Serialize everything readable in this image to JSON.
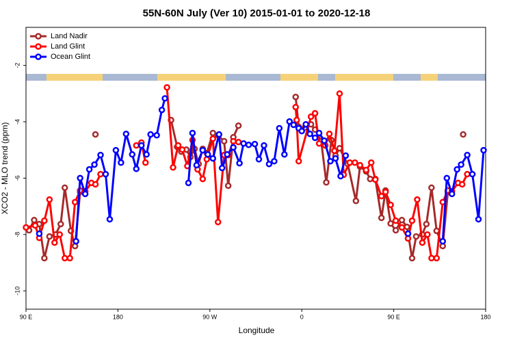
{
  "chart_data": {
    "type": "line",
    "title": "55N-60N July (Ver 10)   2015-01-01 to 2020-12-18",
    "xlabel": "Longitude",
    "ylabel": "XCO2 - MLO trend (ppm)",
    "xlim": [
      90,
      540
    ],
    "ylim": [
      -10.65,
      -0.65
    ],
    "xticks": [
      {
        "value": 90,
        "label": "90 E"
      },
      180,
      {
        "value": 270,
        "label": "90 W"
      },
      {
        "value": 360,
        "label": "0"
      },
      {
        "value": 450,
        "label": "90 E"
      },
      {
        "value": 540,
        "label": "180"
      }
    ],
    "yticks": [
      -2,
      -4,
      -6,
      -8,
      -10
    ],
    "legend": "upper left",
    "series": [
      {
        "name": "Land Nadir",
        "color": "#a52a2a",
        "x": [
          93,
          98,
          103,
          108,
          113,
          119,
          124,
          128,
          134,
          138,
          143,
          150,
          158,
          200,
          232,
          238,
          242,
          247,
          251,
          255,
          259,
          263,
          267,
          273,
          278,
          284,
          288,
          293,
          298,
          325,
          354,
          357,
          363,
          369,
          373,
          379,
          384,
          389,
          393,
          397,
          405,
          413,
          417,
          423,
          427,
          432,
          438,
          442,
          447,
          452,
          458,
          463,
          468,
          472,
          478,
          482,
          487,
          492,
          498,
          503,
          510,
          518
        ],
        "values": [
          -7.85,
          -7.49,
          -7.63,
          -8.84,
          -8.07,
          -8.0,
          -7.63,
          -6.34,
          -7.87,
          -8.41,
          -6.49,
          null,
          -4.45,
          null,
          -3.94,
          -4.89,
          -5.06,
          -4.99,
          -5.25,
          -4.96,
          -5.5,
          -4.96,
          -5.11,
          -4.4,
          -4.48,
          -4.69,
          -6.27,
          -4.55,
          -4.14,
          null,
          -3.12,
          -4.18,
          -4.21,
          -4.09,
          -4.28,
          -4.69,
          -6.15,
          -4.65,
          -5.2,
          -4.94,
          -5.5,
          -6.81,
          -5.59,
          -5.76,
          -6.03,
          -6.03,
          -7.41,
          -6.44,
          -7.61,
          -7.85,
          -7.49,
          -7.73,
          -8.84,
          -8.07,
          -8.0,
          -7.63,
          -6.34,
          -7.87,
          -8.41,
          -6.49,
          null,
          -4.45
        ]
      },
      {
        "name": "Land Glint",
        "color": "#ff0000",
        "x": [
          90,
          99,
          103,
          108,
          113,
          118,
          123,
          128,
          133,
          138,
          143,
          148,
          154,
          158,
          163,
          175,
          198,
          203,
          207,
          218,
          228,
          234,
          239,
          243,
          248,
          253,
          258,
          263,
          267,
          273,
          278,
          284,
          288,
          293,
          298,
          325,
          354,
          355,
          357,
          369,
          373,
          377,
          383,
          387,
          392,
          397,
          401,
          407,
          412,
          417,
          423,
          428,
          432,
          438,
          442,
          447,
          452,
          458,
          464,
          468,
          473,
          478,
          483,
          487,
          492,
          498,
          503,
          507,
          513,
          517,
          522
        ],
        "values": [
          -7.75,
          -7.68,
          -8.12,
          -7.51,
          -6.76,
          -8.29,
          -8.0,
          -8.84,
          -8.84,
          -6.85,
          -6.44,
          -6.47,
          -6.17,
          -6.22,
          -5.86,
          null,
          -4.84,
          -4.74,
          -5.45,
          null,
          -2.78,
          -5.62,
          -4.84,
          -4.99,
          -5.57,
          -4.65,
          -5.69,
          -6.03,
          -5.33,
          -4.6,
          -7.56,
          -5.18,
          -5.18,
          -4.69,
          -4.72,
          null,
          -3.48,
          -3.94,
          -5.4,
          -3.82,
          -3.7,
          -4.77,
          -4.84,
          -4.43,
          -5.03,
          -3.0,
          -5.88,
          -5.45,
          -5.45,
          -5.54,
          -5.71,
          -5.45,
          -6.05,
          -6.64,
          -6.49,
          -6.95,
          -7.51,
          -7.75,
          -8.14,
          -7.51,
          -6.76,
          -8.29,
          -8.0,
          -8.84,
          -8.84,
          -6.85,
          -6.44,
          -6.47,
          -6.17,
          -6.22,
          -5.86
        ]
      },
      {
        "name": "Ocean Glint",
        "color": "#0000ff",
        "x": [
          103,
          120,
          139,
          143,
          148,
          152,
          157,
          163,
          168,
          172,
          178,
          183,
          188,
          194,
          198,
          203,
          208,
          212,
          218,
          223,
          226,
          238,
          249,
          253,
          257,
          263,
          268,
          273,
          279,
          282,
          287,
          293,
          299,
          303,
          308,
          314,
          318,
          323,
          328,
          333,
          338,
          343,
          348,
          352,
          357,
          360,
          364,
          368,
          373,
          377,
          382,
          388,
          393,
          398,
          403,
          430,
          464,
          480,
          498,
          502,
          507,
          512,
          516,
          522,
          527,
          533,
          538
        ],
        "values": [
          -7.97,
          null,
          -8.24,
          -6.0,
          -6.56,
          -5.69,
          -5.52,
          -5.18,
          -5.86,
          -7.46,
          -5.01,
          -5.45,
          -4.43,
          -5.16,
          -5.67,
          -4.84,
          -5.16,
          -4.45,
          -4.48,
          -3.58,
          -3.17,
          null,
          -6.17,
          -4.4,
          -5.54,
          -5.01,
          -5.16,
          -5.3,
          -4.45,
          -5.64,
          -5.16,
          -4.91,
          -5.47,
          -4.77,
          -4.82,
          -4.79,
          -5.33,
          -4.84,
          -5.5,
          -5.4,
          -4.23,
          -5.16,
          -3.99,
          -4.11,
          -4.23,
          -4.33,
          -4.09,
          -4.43,
          -4.57,
          -4.4,
          -4.67,
          -5.4,
          -5.3,
          -5.93,
          -5.2,
          null,
          -7.97,
          null,
          -8.24,
          -6.0,
          -6.56,
          -5.69,
          -5.52,
          -5.18,
          -5.86,
          -7.46,
          -5.01
        ]
      }
    ]
  }
}
